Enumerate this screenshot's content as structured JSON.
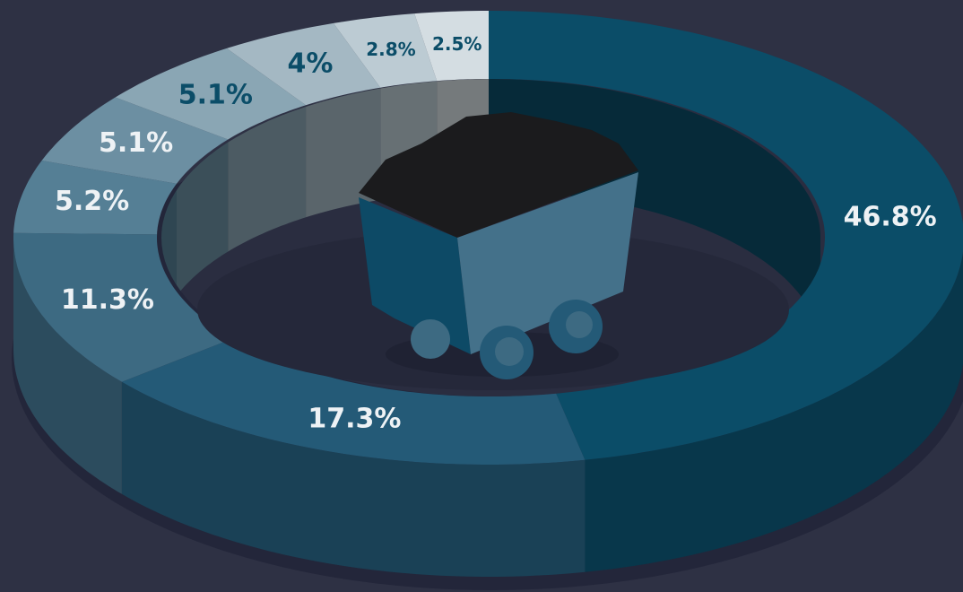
{
  "chart_data": {
    "type": "donut3d",
    "values": [
      46.8,
      17.3,
      11.3,
      5.2,
      5.1,
      5.1,
      4,
      2.8,
      2.5
    ],
    "value_labels": [
      "46.8%",
      "17.3%",
      "11.3%",
      "5.2%",
      "5.1%",
      "5.1%",
      "4%",
      "2.8%",
      "2.5%"
    ],
    "colors": [
      "#0b4d68",
      "#245a77",
      "#3d6a82",
      "#557f95",
      "#6c8fa2",
      "#8aa6b4",
      "#a4b8c3",
      "#bccbd3",
      "#d4dde2"
    ]
  }
}
